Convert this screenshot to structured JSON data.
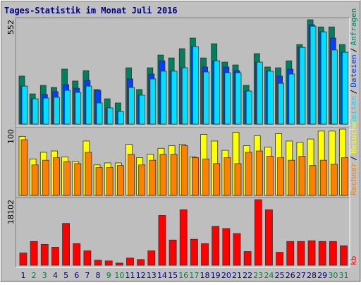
{
  "title": "Tages-Statistik im Monat Juli 2016",
  "chart_data": [
    {
      "type": "bar",
      "categories": [
        "1",
        "2",
        "3",
        "4",
        "5",
        "6",
        "7",
        "8",
        "9",
        "10",
        "11",
        "12",
        "13",
        "14",
        "15",
        "16",
        "17",
        "18",
        "19",
        "20",
        "21",
        "22",
        "23",
        "24",
        "25",
        "26",
        "27",
        "28",
        "29",
        "30",
        "31"
      ],
      "category_colors": [
        "#000080",
        "#008040",
        "#008040",
        "#000080",
        "#000080",
        "#000080",
        "#000080",
        "#000080",
        "#008040",
        "#008040",
        "#000080",
        "#000080",
        "#000080",
        "#000080",
        "#000080",
        "#008040",
        "#008040",
        "#000080",
        "#000080",
        "#000080",
        "#000080",
        "#000080",
        "#008040",
        "#008040",
        "#000080",
        "#000080",
        "#000080",
        "#000080",
        "#000080",
        "#008040",
        "#008040"
      ],
      "legend_separator": "/",
      "ylim": [
        0,
        552
      ],
      "yticks": [
        552
      ],
      "series": [
        {
          "name": "Anfragen",
          "color": "#00805c",
          "values": [
            254,
            160,
            205,
            194,
            291,
            228,
            283,
            183,
            134,
            112,
            298,
            183,
            298,
            365,
            350,
            399,
            455,
            350,
            425,
            328,
            313,
            205,
            373,
            302,
            298,
            335,
            421,
            552,
            514,
            514,
            421
          ]
        },
        {
          "name": "Dateien",
          "color": "#0040ff",
          "values": [
            201,
            134,
            157,
            172,
            209,
            190,
            231,
            179,
            86,
            67,
            239,
            153,
            265,
            335,
            280,
            298,
            410,
            302,
            335,
            302,
            283,
            175,
            328,
            280,
            254,
            291,
            406,
            526,
            488,
            455,
            380
          ]
        },
        {
          "name": "Seiten",
          "color": "#00e0ff",
          "values": [
            201,
            134,
            138,
            142,
            179,
            168,
            201,
            112,
            86,
            67,
            194,
            153,
            239,
            280,
            280,
            298,
            410,
            276,
            335,
            272,
            272,
            175,
            328,
            280,
            216,
            265,
            406,
            518,
            488,
            392,
            380
          ]
        }
      ]
    },
    {
      "type": "bar",
      "legend_separator": "/",
      "ylim": [
        0,
        100
      ],
      "yticks": [
        100
      ],
      "series": [
        {
          "name": "Besuche",
          "color": "#ffff00",
          "values": [
            89,
            55,
            65,
            67,
            58,
            51,
            82,
            46,
            49,
            49,
            77,
            57,
            62,
            71,
            75,
            77,
            58,
            92,
            82,
            68,
            95,
            75,
            90,
            73,
            93,
            82,
            80,
            85,
            97,
            97,
            100
          ]
        },
        {
          "name": "Rechner",
          "color": "#ff8000",
          "values": [
            84,
            46,
            53,
            57,
            51,
            48,
            65,
            42,
            42,
            45,
            62,
            46,
            53,
            62,
            62,
            75,
            57,
            55,
            48,
            57,
            48,
            65,
            67,
            59,
            57,
            53,
            59,
            45,
            53,
            47,
            57
          ]
        }
      ]
    },
    {
      "type": "bar",
      "ylim": [
        0,
        18102
      ],
      "yticks": [
        18102
      ],
      "series": [
        {
          "name": "kb",
          "color": "#ff0000",
          "values": [
            3382,
            6564,
            5769,
            4973,
            11538,
            5968,
            3978,
            1392,
            1193,
            597,
            1989,
            1591,
            3978,
            13726,
            6962,
            15317,
            7161,
            5968,
            10742,
            10145,
            8753,
            3780,
            18102,
            15317,
            3581,
            6564,
            6564,
            6763,
            6564,
            6564,
            5371
          ]
        }
      ]
    }
  ]
}
